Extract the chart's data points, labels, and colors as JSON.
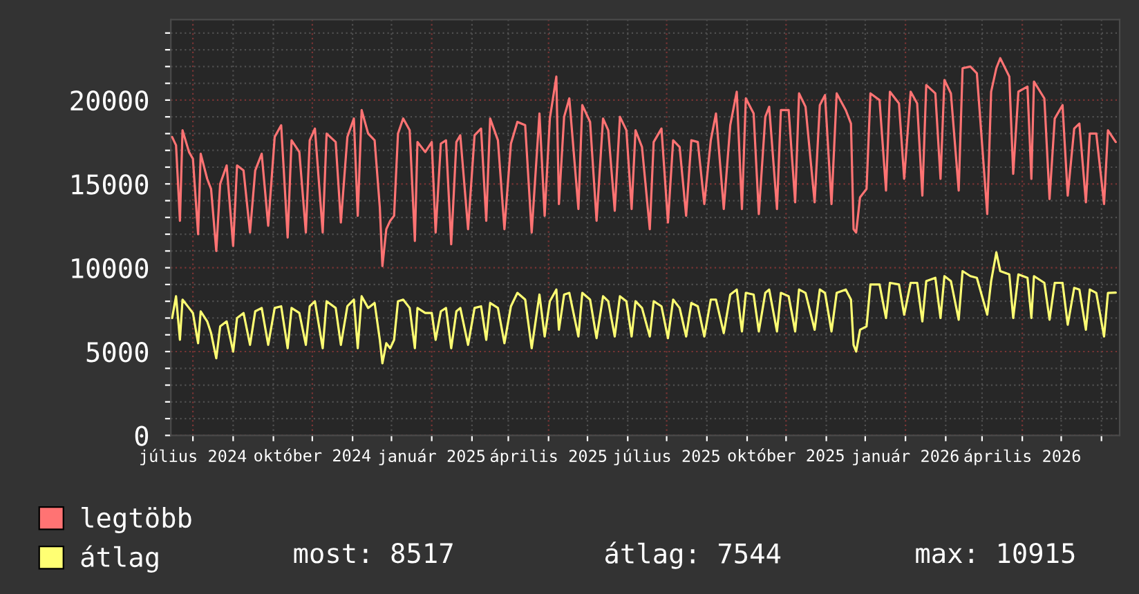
{
  "chart_data": {
    "type": "line",
    "x": [
      "2024-06-15",
      "2024-06-18",
      "2024-06-21",
      "2024-06-23",
      "2024-06-28",
      "2024-07-01",
      "2024-07-05",
      "2024-07-07",
      "2024-07-12",
      "2024-07-15",
      "2024-07-19",
      "2024-07-22",
      "2024-07-27",
      "2024-08-01",
      "2024-08-04",
      "2024-08-09",
      "2024-08-14",
      "2024-08-18",
      "2024-08-23",
      "2024-08-28",
      "2024-09-02",
      "2024-09-07",
      "2024-09-12",
      "2024-09-15",
      "2024-09-21",
      "2024-09-26",
      "2024-09-29",
      "2024-10-03",
      "2024-10-09",
      "2024-10-12",
      "2024-10-19",
      "2024-10-23",
      "2024-10-28",
      "2024-11-02",
      "2024-11-05",
      "2024-11-08",
      "2024-11-13",
      "2024-11-18",
      "2024-11-22",
      "2024-11-24",
      "2024-11-27",
      "2024-11-30",
      "2024-12-03",
      "2024-12-06",
      "2024-12-10",
      "2024-12-15",
      "2024-12-19",
      "2024-12-21",
      "2024-12-27",
      "2025-01-01",
      "2025-01-04",
      "2025-01-08",
      "2025-01-12",
      "2025-01-16",
      "2025-01-20",
      "2025-01-23",
      "2025-01-29",
      "2025-02-03",
      "2025-02-08",
      "2025-02-12",
      "2025-02-15",
      "2025-02-21",
      "2025-02-26",
      "2025-03-03",
      "2025-03-08",
      "2025-03-14",
      "2025-03-19",
      "2025-03-25",
      "2025-03-29",
      "2025-04-02",
      "2025-04-07",
      "2025-04-09",
      "2025-04-13",
      "2025-04-17",
      "2025-04-24",
      "2025-04-27",
      "2025-05-03",
      "2025-05-08",
      "2025-05-13",
      "2025-05-17",
      "2025-05-22",
      "2025-05-26",
      "2025-05-31",
      "2025-06-04",
      "2025-06-07",
      "2025-06-12",
      "2025-06-18",
      "2025-06-21",
      "2025-06-27",
      "2025-07-02",
      "2025-07-06",
      "2025-07-11",
      "2025-07-16",
      "2025-07-20",
      "2025-07-25",
      "2025-07-30",
      "2025-08-04",
      "2025-08-08",
      "2025-08-14",
      "2025-08-19",
      "2025-08-24",
      "2025-08-28",
      "2025-08-31",
      "2025-09-06",
      "2025-09-10",
      "2025-09-15",
      "2025-09-18",
      "2025-09-24",
      "2025-09-27",
      "2025-10-03",
      "2025-10-08",
      "2025-10-11",
      "2025-10-16",
      "2025-10-23",
      "2025-10-27",
      "2025-10-31",
      "2025-11-05",
      "2025-11-09",
      "2025-11-16",
      "2025-11-20",
      "2025-11-22",
      "2025-11-24",
      "2025-11-27",
      "2025-12-02",
      "2025-12-05",
      "2025-12-12",
      "2025-12-17",
      "2025-12-20",
      "2025-12-27",
      "2025-12-31",
      "2026-01-05",
      "2026-01-10",
      "2026-01-14",
      "2026-01-17",
      "2026-01-24",
      "2026-01-28",
      "2026-01-31",
      "2026-02-05",
      "2026-02-11",
      "2026-02-14",
      "2026-02-20",
      "2026-02-25",
      "2026-03-05",
      "2026-03-08",
      "2026-03-12",
      "2026-03-15",
      "2026-03-22",
      "2026-03-25",
      "2026-03-29",
      "2026-04-05",
      "2026-04-08",
      "2026-04-10",
      "2026-04-18",
      "2026-04-22",
      "2026-04-26",
      "2026-05-02",
      "2026-05-06",
      "2026-05-11",
      "2026-05-15",
      "2026-05-20",
      "2026-05-23",
      "2026-05-28",
      "2026-06-03",
      "2026-06-06",
      "2026-06-12"
    ],
    "series": [
      {
        "name": "legtöbb",
        "color": "#ff7373",
        "values": [
          17800,
          17300,
          12800,
          18200,
          16900,
          16500,
          12000,
          16800,
          15300,
          14700,
          11000,
          15000,
          16100,
          11300,
          16100,
          15800,
          12100,
          15800,
          16800,
          12500,
          17800,
          18500,
          11800,
          17600,
          16900,
          12100,
          17600,
          18300,
          12100,
          18000,
          17500,
          12700,
          17800,
          18900,
          13100,
          19400,
          18000,
          17600,
          13600,
          10100,
          12300,
          12800,
          13100,
          18000,
          18900,
          18200,
          11600,
          17500,
          16900,
          17500,
          12100,
          17400,
          17600,
          11400,
          17500,
          17900,
          12300,
          17900,
          18300,
          12800,
          18900,
          17600,
          12300,
          17400,
          18700,
          18500,
          12100,
          19200,
          13100,
          18900,
          21400,
          13800,
          19000,
          20100,
          13500,
          19700,
          18700,
          12800,
          18900,
          18200,
          13400,
          19000,
          18200,
          13500,
          18200,
          17200,
          12300,
          17500,
          18300,
          12700,
          17600,
          17200,
          13100,
          17600,
          17500,
          13800,
          17600,
          19200,
          13500,
          18500,
          20500,
          13500,
          20100,
          19200,
          13200,
          19000,
          19600,
          13500,
          19400,
          19400,
          13900,
          20400,
          19600,
          13900,
          19700,
          20300,
          13800,
          20400,
          19400,
          18600,
          12300,
          12100,
          14200,
          14700,
          20400,
          20000,
          14600,
          20500,
          19800,
          15300,
          20500,
          19800,
          14300,
          20900,
          20400,
          15300,
          21200,
          20400,
          14600,
          21900,
          22000,
          21600,
          13200,
          20500,
          21900,
          22500,
          21400,
          15600,
          20500,
          20800,
          15300,
          21100,
          20100,
          14100,
          18900,
          19700,
          14300,
          18300,
          18600,
          13900,
          18000,
          18000,
          13800,
          18200,
          17500
        ]
      },
      {
        "name": "átlag",
        "color": "#ffff73",
        "values": [
          7000,
          8300,
          5700,
          8100,
          7600,
          7300,
          5500,
          7400,
          6800,
          6100,
          4600,
          6500,
          6800,
          5000,
          7000,
          7300,
          5400,
          7400,
          7600,
          5400,
          7600,
          7700,
          5200,
          7600,
          7300,
          5400,
          7700,
          8000,
          5200,
          8000,
          7600,
          5400,
          7700,
          8100,
          5200,
          8300,
          7600,
          7900,
          5700,
          4300,
          5500,
          5200,
          5700,
          8000,
          8100,
          7600,
          5200,
          7600,
          7300,
          7300,
          5700,
          7400,
          7600,
          5200,
          7400,
          7600,
          5400,
          7600,
          7700,
          5700,
          7900,
          7600,
          5500,
          7700,
          8500,
          8100,
          5200,
          8400,
          5900,
          8000,
          8700,
          6300,
          8400,
          8500,
          5900,
          8500,
          8100,
          5800,
          8300,
          8000,
          5900,
          8300,
          8000,
          5900,
          8000,
          7600,
          5900,
          8000,
          7700,
          5800,
          8100,
          7600,
          5900,
          7900,
          7700,
          5900,
          8100,
          8100,
          6100,
          8400,
          8700,
          6200,
          8500,
          8400,
          6200,
          8500,
          8700,
          6200,
          8500,
          8300,
          6200,
          8700,
          8500,
          6300,
          8700,
          8500,
          6200,
          8500,
          8700,
          8100,
          5400,
          5000,
          6300,
          6500,
          9000,
          9000,
          7000,
          9100,
          9000,
          7200,
          9100,
          9100,
          6800,
          9200,
          9400,
          7000,
          9500,
          9200,
          6900,
          9800,
          9500,
          9400,
          7200,
          9200,
          10915,
          9800,
          9600,
          7000,
          9600,
          9400,
          7000,
          9500,
          9100,
          6900,
          9100,
          9100,
          6600,
          8800,
          8700,
          6300,
          8700,
          8500,
          5900,
          8500,
          8517
        ]
      }
    ],
    "xlim": [
      "2024-06-14",
      "2026-06-15"
    ],
    "xticks": [
      {
        "value": "2024-07-01",
        "label": "július 2024"
      },
      {
        "value": "2024-08-01",
        "label": null
      },
      {
        "value": "2024-09-01",
        "label": null
      },
      {
        "value": "2024-10-01",
        "label": "október 2024"
      },
      {
        "value": "2024-11-01",
        "label": null
      },
      {
        "value": "2024-12-01",
        "label": null
      },
      {
        "value": "2025-01-01",
        "label": "január 2025"
      },
      {
        "value": "2025-02-01",
        "label": null
      },
      {
        "value": "2025-03-01",
        "label": null
      },
      {
        "value": "2025-04-01",
        "label": "április 2025"
      },
      {
        "value": "2025-05-01",
        "label": null
      },
      {
        "value": "2025-06-01",
        "label": null
      },
      {
        "value": "2025-07-01",
        "label": "július 2025"
      },
      {
        "value": "2025-08-01",
        "label": null
      },
      {
        "value": "2025-09-01",
        "label": null
      },
      {
        "value": "2025-10-01",
        "label": "október 2025"
      },
      {
        "value": "2025-11-01",
        "label": null
      },
      {
        "value": "2025-12-01",
        "label": null
      },
      {
        "value": "2026-01-01",
        "label": "január 2026"
      },
      {
        "value": "2026-02-01",
        "label": null
      },
      {
        "value": "2026-03-01",
        "label": null
      },
      {
        "value": "2026-04-01",
        "label": "április 2026"
      },
      {
        "value": "2026-05-01",
        "label": null
      },
      {
        "value": "2026-06-01",
        "label": null
      }
    ],
    "ylim": [
      0,
      24800
    ],
    "yticks": [
      0,
      {
        "value": 1000,
        "label": null
      },
      {
        "value": 2000,
        "label": null
      },
      {
        "value": 3000,
        "label": null
      },
      {
        "value": 4000,
        "label": null
      },
      5000,
      {
        "value": 6000,
        "label": null
      },
      {
        "value": 7000,
        "label": null
      },
      {
        "value": 8000,
        "label": null
      },
      {
        "value": 9000,
        "label": null
      },
      10000,
      {
        "value": 11000,
        "label": null
      },
      {
        "value": 12000,
        "label": null
      },
      {
        "value": 13000,
        "label": null
      },
      {
        "value": 14000,
        "label": null
      },
      15000,
      {
        "value": 16000,
        "label": null
      },
      {
        "value": 17000,
        "label": null
      },
      {
        "value": 18000,
        "label": null
      },
      {
        "value": 19000,
        "label": null
      },
      20000,
      {
        "value": 21000,
        "label": null
      },
      {
        "value": 22000,
        "label": null
      },
      {
        "value": 23000,
        "label": null
      },
      {
        "value": 24000,
        "label": null
      }
    ],
    "grid": true,
    "legend": "bottom",
    "line_style": "solid",
    "annotations": [
      "most: 8517",
      "átlag: 7544",
      "max: 10915"
    ]
  }
}
